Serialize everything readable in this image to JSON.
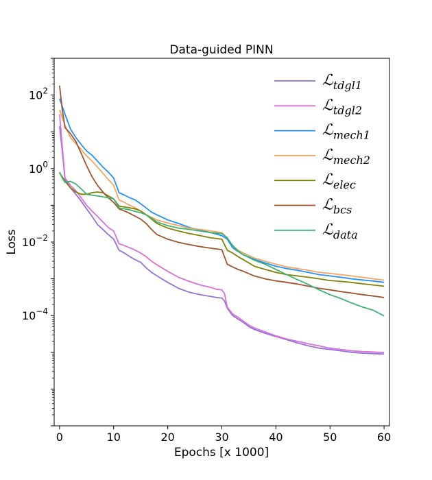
{
  "chart_data": {
    "type": "line",
    "title": "Data-guided PINN",
    "xlabel": "Epochs [x 1000]",
    "ylabel": "Loss",
    "xlim": [
      -1,
      61
    ],
    "ylim": [
      1e-07,
      1000
    ],
    "yscale": "log",
    "grid": false,
    "legend_position": "top-right",
    "x_ticks": [
      {
        "value": 0,
        "label": "0"
      },
      {
        "value": 10,
        "label": "10"
      },
      {
        "value": 20,
        "label": "20"
      },
      {
        "value": 30,
        "label": "30"
      },
      {
        "value": 40,
        "label": "40"
      },
      {
        "value": 50,
        "label": "50"
      },
      {
        "value": 60,
        "label": "60"
      }
    ],
    "y_ticks": [
      {
        "value": 100,
        "base": "10",
        "exp": "2"
      },
      {
        "value": 1,
        "base": "10",
        "exp": "0"
      },
      {
        "value": 0.01,
        "base": "10",
        "exp": "−2"
      },
      {
        "value": 0.0001,
        "base": "10",
        "exp": "−4"
      }
    ],
    "series": [
      {
        "name": "tdgl1",
        "legend_main": "ℒ",
        "legend_sub": "tdgl1",
        "color": "#9370db",
        "x": [
          0,
          0.5,
          1,
          2,
          3,
          4,
          5,
          6,
          7,
          8,
          9,
          10,
          11,
          12,
          13,
          14,
          15,
          16,
          17,
          18,
          20,
          22,
          24,
          26,
          28,
          29,
          30,
          30.5,
          31,
          32,
          33,
          34,
          35,
          36,
          38,
          40,
          42,
          44,
          46,
          48,
          50,
          52,
          54,
          56,
          58,
          60
        ],
        "y": [
          14,
          3,
          0.5,
          0.3,
          0.2,
          0.13,
          0.08,
          0.05,
          0.03,
          0.022,
          0.016,
          0.012,
          0.006,
          0.005,
          0.004,
          0.0033,
          0.0028,
          0.002,
          0.0015,
          0.0012,
          0.0008,
          0.00055,
          0.00043,
          0.00037,
          0.00033,
          0.00031,
          0.0003,
          0.00025,
          0.00016,
          0.0001,
          8e-05,
          6.5e-05,
          5e-05,
          4.2e-05,
          3.3e-05,
          2.7e-05,
          2.2e-05,
          1.8e-05,
          1.5e-05,
          1.3e-05,
          1.2e-05,
          1.1e-05,
          1e-05,
          9.5e-06,
          9.2e-06,
          9e-06
        ]
      },
      {
        "name": "tdgl2",
        "legend_main": "ℒ",
        "legend_sub": "tdgl2",
        "color": "#d870d8",
        "x": [
          0,
          0.5,
          1,
          2,
          3,
          4,
          5,
          6,
          7,
          8,
          9,
          10,
          11,
          12,
          13,
          14,
          15,
          16,
          17,
          18,
          20,
          22,
          24,
          26,
          28,
          29,
          30,
          30.5,
          31,
          32,
          33,
          34,
          35,
          36,
          38,
          40,
          42,
          44,
          46,
          48,
          50,
          52,
          54,
          56,
          58,
          60
        ],
        "y": [
          30,
          4,
          0.55,
          0.35,
          0.25,
          0.16,
          0.1,
          0.07,
          0.05,
          0.035,
          0.025,
          0.02,
          0.009,
          0.008,
          0.007,
          0.006,
          0.005,
          0.004,
          0.003,
          0.0024,
          0.0016,
          0.0011,
          0.00085,
          0.00068,
          0.00058,
          0.00052,
          0.0005,
          0.0004,
          0.00017,
          0.00011,
          9e-05,
          7e-05,
          5.5e-05,
          4.6e-05,
          3.6e-05,
          2.8e-05,
          2.3e-05,
          2e-05,
          1.7e-05,
          1.5e-05,
          1.3e-05,
          1.2e-05,
          1.1e-05,
          1.05e-05,
          1.02e-05,
          9.8e-06
        ]
      },
      {
        "name": "mech1",
        "legend_main": "ℒ",
        "legend_sub": "mech1",
        "color": "#1e90ff",
        "x": [
          0,
          1,
          2,
          3,
          4,
          5,
          6,
          7,
          8,
          9,
          10,
          11,
          12,
          13,
          14,
          15,
          16,
          17,
          18,
          20,
          22,
          24,
          26,
          28,
          30,
          31,
          32,
          33,
          34,
          36,
          38,
          40,
          42,
          44,
          46,
          48,
          50,
          52,
          54,
          56,
          58,
          60
        ],
        "y": [
          80,
          30,
          12,
          7,
          4.5,
          3,
          2.3,
          1.6,
          1.1,
          0.8,
          0.55,
          0.22,
          0.19,
          0.16,
          0.14,
          0.11,
          0.085,
          0.065,
          0.055,
          0.04,
          0.032,
          0.025,
          0.021,
          0.018,
          0.015,
          0.012,
          0.007,
          0.0055,
          0.0045,
          0.0034,
          0.0027,
          0.0022,
          0.0019,
          0.0017,
          0.0015,
          0.0013,
          0.0012,
          0.0011,
          0.001,
          0.00093,
          0.00087,
          0.0008
        ]
      },
      {
        "name": "mech2",
        "legend_main": "ℒ",
        "legend_sub": "mech2",
        "color": "#f4a460",
        "x": [
          0,
          1,
          2,
          3,
          4,
          5,
          6,
          7,
          8,
          9,
          10,
          11,
          12,
          13,
          14,
          15,
          16,
          17,
          18,
          20,
          22,
          24,
          26,
          28,
          30,
          31,
          32,
          33,
          34,
          36,
          38,
          40,
          42,
          44,
          46,
          48,
          50,
          52,
          54,
          56,
          58,
          60
        ],
        "y": [
          40,
          15,
          7,
          4.8,
          3.3,
          2.2,
          1.6,
          1.1,
          0.75,
          0.5,
          0.35,
          0.14,
          0.12,
          0.1,
          0.085,
          0.07,
          0.056,
          0.047,
          0.04,
          0.033,
          0.028,
          0.024,
          0.022,
          0.02,
          0.018,
          0.013,
          0.008,
          0.006,
          0.005,
          0.0037,
          0.003,
          0.0025,
          0.0021,
          0.0019,
          0.0017,
          0.0015,
          0.0014,
          0.0013,
          0.0012,
          0.0011,
          0.001,
          0.00092
        ]
      },
      {
        "name": "elec",
        "legend_main": "ℒ",
        "legend_sub": "elec",
        "color": "#808000",
        "x": [
          0,
          0.5,
          1,
          2,
          3,
          4,
          5,
          6,
          7,
          8,
          9,
          10,
          11,
          12,
          13,
          14,
          15,
          16,
          17,
          18,
          20,
          22,
          24,
          26,
          28,
          30,
          31,
          32,
          33,
          34,
          36,
          38,
          40,
          42,
          44,
          46,
          48,
          50,
          52,
          54,
          56,
          58,
          60
        ],
        "y": [
          0.75,
          0.6,
          0.45,
          0.3,
          0.23,
          0.2,
          0.2,
          0.22,
          0.23,
          0.22,
          0.18,
          0.15,
          0.095,
          0.09,
          0.085,
          0.08,
          0.07,
          0.055,
          0.042,
          0.032,
          0.024,
          0.02,
          0.017,
          0.015,
          0.013,
          0.012,
          0.006,
          0.005,
          0.004,
          0.0033,
          0.0022,
          0.0018,
          0.0015,
          0.0013,
          0.0012,
          0.0011,
          0.001,
          0.0009,
          0.00085,
          0.0008,
          0.00073,
          0.00068,
          0.00063
        ]
      },
      {
        "name": "bcs",
        "legend_main": "ℒ",
        "legend_sub": "bcs",
        "color": "#a0522d",
        "x": [
          0,
          0.5,
          1,
          2,
          3,
          4,
          5,
          6,
          7,
          8,
          9,
          10,
          11,
          12,
          13,
          14,
          15,
          16,
          17,
          18,
          20,
          22,
          24,
          26,
          28,
          30,
          31,
          32,
          33,
          34,
          36,
          38,
          40,
          42,
          44,
          46,
          48,
          50,
          52,
          54,
          56,
          58,
          60
        ],
        "y": [
          180,
          40,
          13,
          9,
          5.5,
          2.6,
          1.2,
          0.6,
          0.35,
          0.23,
          0.16,
          0.12,
          0.08,
          0.07,
          0.06,
          0.05,
          0.042,
          0.032,
          0.022,
          0.016,
          0.012,
          0.0098,
          0.0085,
          0.0075,
          0.0068,
          0.0062,
          0.0025,
          0.0021,
          0.0018,
          0.0016,
          0.0012,
          0.001,
          0.00088,
          0.0008,
          0.00072,
          0.00063,
          0.00055,
          0.0005,
          0.00045,
          0.00041,
          0.00037,
          0.00034,
          0.00031
        ]
      },
      {
        "name": "data",
        "legend_main": "ℒ",
        "legend_sub": "data",
        "color": "#3cb371",
        "x": [
          0,
          0.5,
          1,
          2,
          3,
          4,
          5,
          6,
          7,
          8,
          9,
          10,
          11,
          12,
          13,
          14,
          15,
          16,
          17,
          18,
          20,
          22,
          24,
          26,
          28,
          30,
          31,
          32,
          33,
          34,
          36,
          38,
          40,
          42,
          44,
          46,
          48,
          50,
          52,
          54,
          56,
          58,
          60
        ],
        "y": [
          0.8,
          0.55,
          0.42,
          0.45,
          0.38,
          0.28,
          0.2,
          0.19,
          0.18,
          0.17,
          0.16,
          0.15,
          0.085,
          0.08,
          0.075,
          0.068,
          0.063,
          0.055,
          0.045,
          0.035,
          0.028,
          0.024,
          0.022,
          0.02,
          0.018,
          0.017,
          0.013,
          0.008,
          0.0057,
          0.0045,
          0.0032,
          0.0025,
          0.0018,
          0.0013,
          0.00095,
          0.0007,
          0.0005,
          0.00037,
          0.00029,
          0.00022,
          0.00017,
          0.00014,
          9.8e-05
        ]
      }
    ]
  }
}
